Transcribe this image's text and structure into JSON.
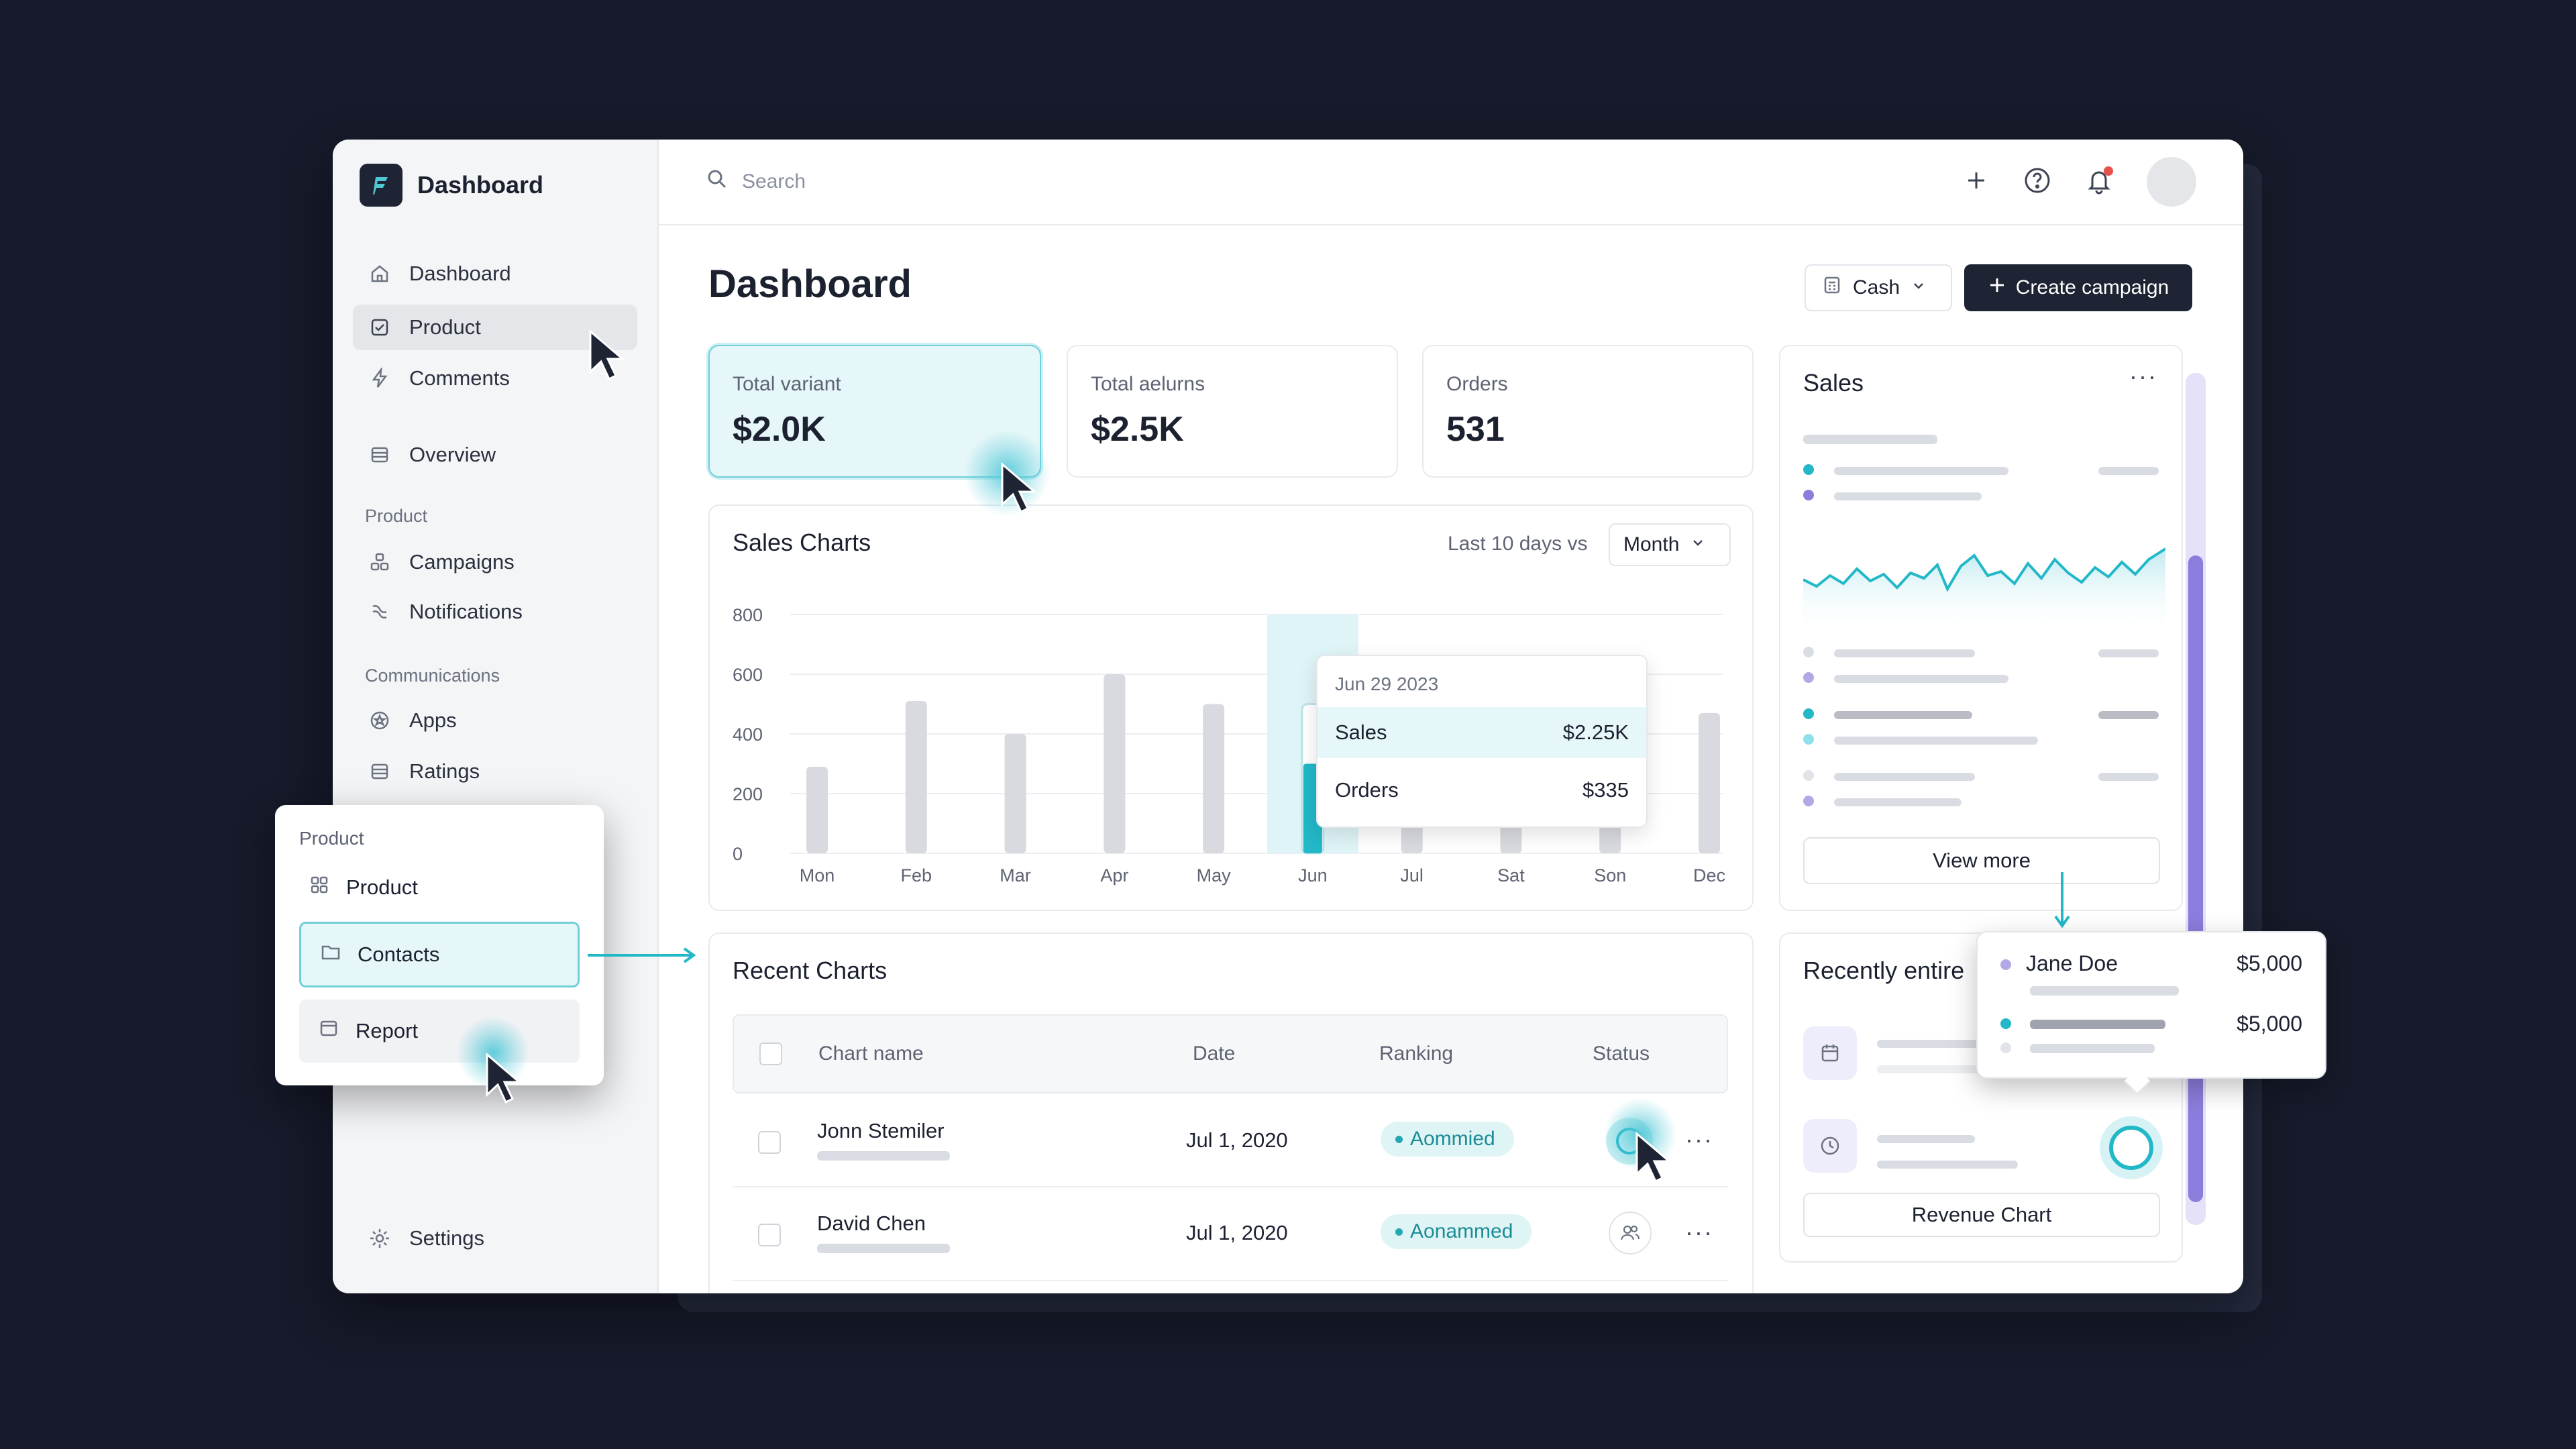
{
  "sidebar": {
    "brand": "Dashboard",
    "items": [
      {
        "label": "Dashboard",
        "icon": "home-icon"
      },
      {
        "label": "Product",
        "icon": "checkbox-icon"
      },
      {
        "label": "Comments",
        "icon": "bolt-icon"
      },
      {
        "label": "Overview",
        "icon": "table-icon"
      }
    ],
    "section_product": "Product",
    "product_items": [
      {
        "label": "Campaigns",
        "icon": "boxes-icon"
      },
      {
        "label": "Notifications",
        "icon": "link-icon"
      }
    ],
    "section_communications": "Communications",
    "comm_items": [
      {
        "label": "Apps",
        "icon": "star-circle-icon"
      },
      {
        "label": "Ratings",
        "icon": "list-icon"
      }
    ],
    "settings": "Settings"
  },
  "topbar": {
    "search_placeholder": "Search"
  },
  "header": {
    "title": "Dashboard",
    "cash_label": "Cash",
    "create_label": "Create campaign"
  },
  "stats": [
    {
      "label": "Total variant",
      "value": "$2.0K"
    },
    {
      "label": "Total aelurns",
      "value": "$2.5K"
    },
    {
      "label": "Orders",
      "value": "531"
    }
  ],
  "sales_chart": {
    "title": "Sales Charts",
    "range_label": "Last 10 days vs",
    "period": "Month",
    "tooltip": {
      "date": "Jun 29 2023",
      "rows": [
        {
          "label": "Sales",
          "value": "$2.25K"
        },
        {
          "label": "Orders",
          "value": "$335"
        }
      ]
    }
  },
  "chart_data": {
    "type": "bar",
    "title": "Sales Charts",
    "categories": [
      "Mon",
      "Feb",
      "Mar",
      "Apr",
      "May",
      "Jun",
      "Jul",
      "Sat",
      "Son",
      "Dec"
    ],
    "values": [
      290,
      510,
      400,
      600,
      500,
      500,
      600,
      460,
      660,
      470
    ],
    "ylim": [
      0,
      800
    ],
    "yticks": [
      0,
      200,
      400,
      600,
      800
    ],
    "highlight_index": 5,
    "highlight_color": "#22b8c8",
    "bar_color": "#d9dadf"
  },
  "sales_panel": {
    "title": "Sales",
    "view_more": "View more"
  },
  "recent": {
    "title": "Recent Charts",
    "columns": [
      "Chart name",
      "Date",
      "Ranking",
      "Status"
    ],
    "rows": [
      {
        "name": "Jonn Stemiler",
        "date": "Jul 1, 2020",
        "ranking": "Aommied"
      },
      {
        "name": "David Chen",
        "date": "Jul 1, 2020",
        "ranking": "Aonammed"
      }
    ]
  },
  "recently": {
    "title": "Recently entire",
    "revenue_button": "Revenue Chart"
  },
  "popover": {
    "rows": [
      {
        "name": "Jane Doe",
        "amount": "$5,000"
      },
      {
        "amount": "$5,000"
      }
    ]
  },
  "floating_menu": {
    "section": "Product",
    "items": [
      "Product",
      "Contacts",
      "Report"
    ]
  },
  "colors": {
    "accent": "#22b8c8",
    "dark": "#1e2433",
    "purple": "#8b7ddc"
  }
}
